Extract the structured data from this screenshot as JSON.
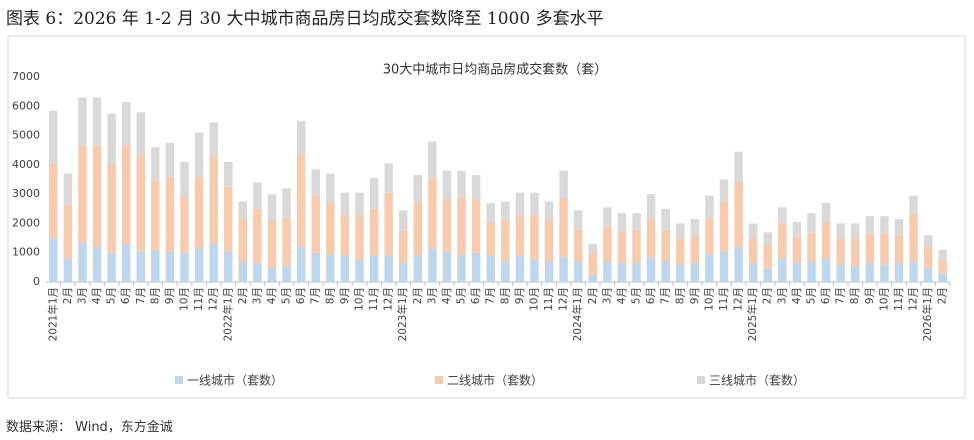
{
  "header": {
    "title": "图表 6：2026 年 1-2 月 30 大中城市商品房日均成交套数降至 1000 多套水平"
  },
  "source": "数据来源： Wind，东方金诚",
  "chart_data": {
    "type": "stacked_bar",
    "title": "30大中城市日均商品房成交套数（套）",
    "categories": [
      "2021年1月",
      "2月",
      "3月",
      "4月",
      "5月",
      "6月",
      "7月",
      "8月",
      "9月",
      "10月",
      "11月",
      "12月",
      "2022年1月",
      "2月",
      "3月",
      "4月",
      "5月",
      "6月",
      "7月",
      "8月",
      "9月",
      "10月",
      "11月",
      "12月",
      "2023年1月",
      "2月",
      "3月",
      "4月",
      "5月",
      "6月",
      "7月",
      "8月",
      "9月",
      "10月",
      "11月",
      "12月",
      "2024年1月",
      "2月",
      "3月",
      "4月",
      "5月",
      "6月",
      "7月",
      "8月",
      "9月",
      "10月",
      "11月",
      "12月",
      "2025年1月",
      "2月",
      "3月",
      "4月",
      "5月",
      "6月",
      "7月",
      "8月",
      "9月",
      "10月",
      "11月",
      "12月",
      "2026年1月",
      "2月"
    ],
    "series": [
      {
        "name": "一线城市（套数）",
        "color": "#bdd7ee",
        "values": [
          1500,
          800,
          1350,
          1200,
          1000,
          1300,
          1050,
          1100,
          1050,
          1000,
          1150,
          1300,
          1050,
          700,
          650,
          500,
          550,
          1200,
          1000,
          950,
          900,
          750,
          900,
          900,
          650,
          900,
          1150,
          1050,
          950,
          1000,
          900,
          700,
          900,
          750,
          700,
          850,
          700,
          250,
          700,
          650,
          650,
          850,
          700,
          600,
          650,
          950,
          1050,
          1200,
          650,
          450,
          800,
          650,
          700,
          800,
          600,
          550,
          650,
          600,
          650,
          700,
          500,
          300
        ]
      },
      {
        "name": "二线城市（套数）",
        "color": "#f8cbad",
        "values": [
          2550,
          1850,
          3300,
          3450,
          3050,
          3400,
          3300,
          2350,
          2550,
          1900,
          2450,
          3000,
          2200,
          1450,
          1850,
          1600,
          1650,
          3150,
          1950,
          1750,
          1400,
          1550,
          1600,
          2150,
          1100,
          1800,
          2400,
          1750,
          1950,
          1800,
          1150,
          1400,
          1400,
          1550,
          1450,
          2000,
          1100,
          750,
          1200,
          1100,
          1150,
          1300,
          1100,
          900,
          900,
          1200,
          1700,
          2250,
          850,
          850,
          1200,
          900,
          1000,
          1250,
          900,
          950,
          1000,
          1050,
          950,
          1650,
          700,
          450
        ]
      },
      {
        "name": "三线城市（套数）",
        "color": "#d9d9d9",
        "values": [
          1800,
          1050,
          1650,
          1650,
          1700,
          1450,
          1450,
          1150,
          1150,
          1200,
          1500,
          1150,
          850,
          600,
          900,
          900,
          1000,
          1150,
          900,
          1000,
          750,
          750,
          1050,
          1000,
          700,
          950,
          1250,
          1000,
          900,
          850,
          650,
          650,
          750,
          750,
          600,
          950,
          650,
          300,
          650,
          600,
          550,
          850,
          700,
          500,
          600,
          800,
          750,
          1000,
          500,
          400,
          550,
          500,
          650,
          650,
          500,
          500,
          600,
          600,
          550,
          600,
          400,
          350
        ]
      }
    ],
    "ylim": [
      0,
      7000
    ],
    "yticks": [
      0,
      1000,
      2000,
      3000,
      4000,
      5000,
      6000,
      7000
    ],
    "grid": false
  }
}
